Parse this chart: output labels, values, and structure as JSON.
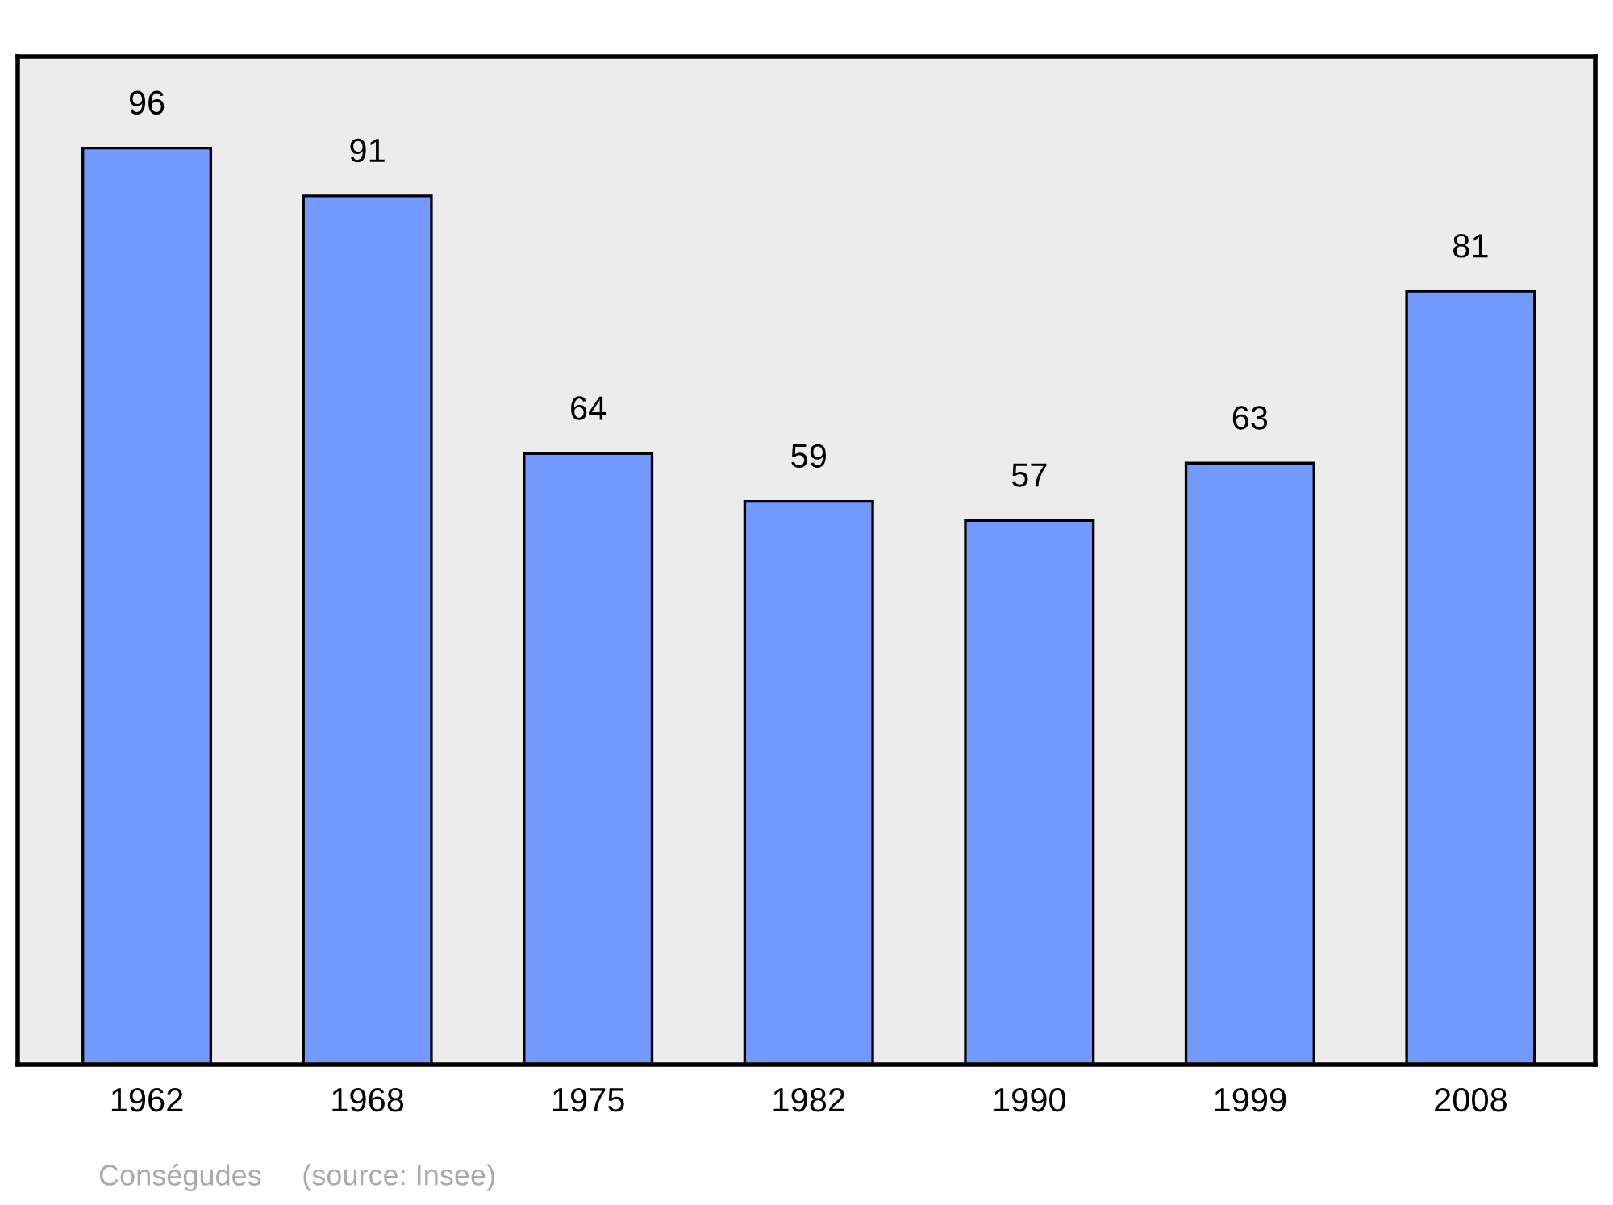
{
  "chart_data": {
    "type": "bar",
    "categories": [
      "1962",
      "1968",
      "1975",
      "1982",
      "1990",
      "1999",
      "2008"
    ],
    "values": [
      96,
      91,
      64,
      59,
      57,
      63,
      81
    ],
    "color": "#7399ff",
    "data_labels": true,
    "grid": false,
    "annotations": [
      "Conségudes",
      "(source: Insee)"
    ]
  }
}
